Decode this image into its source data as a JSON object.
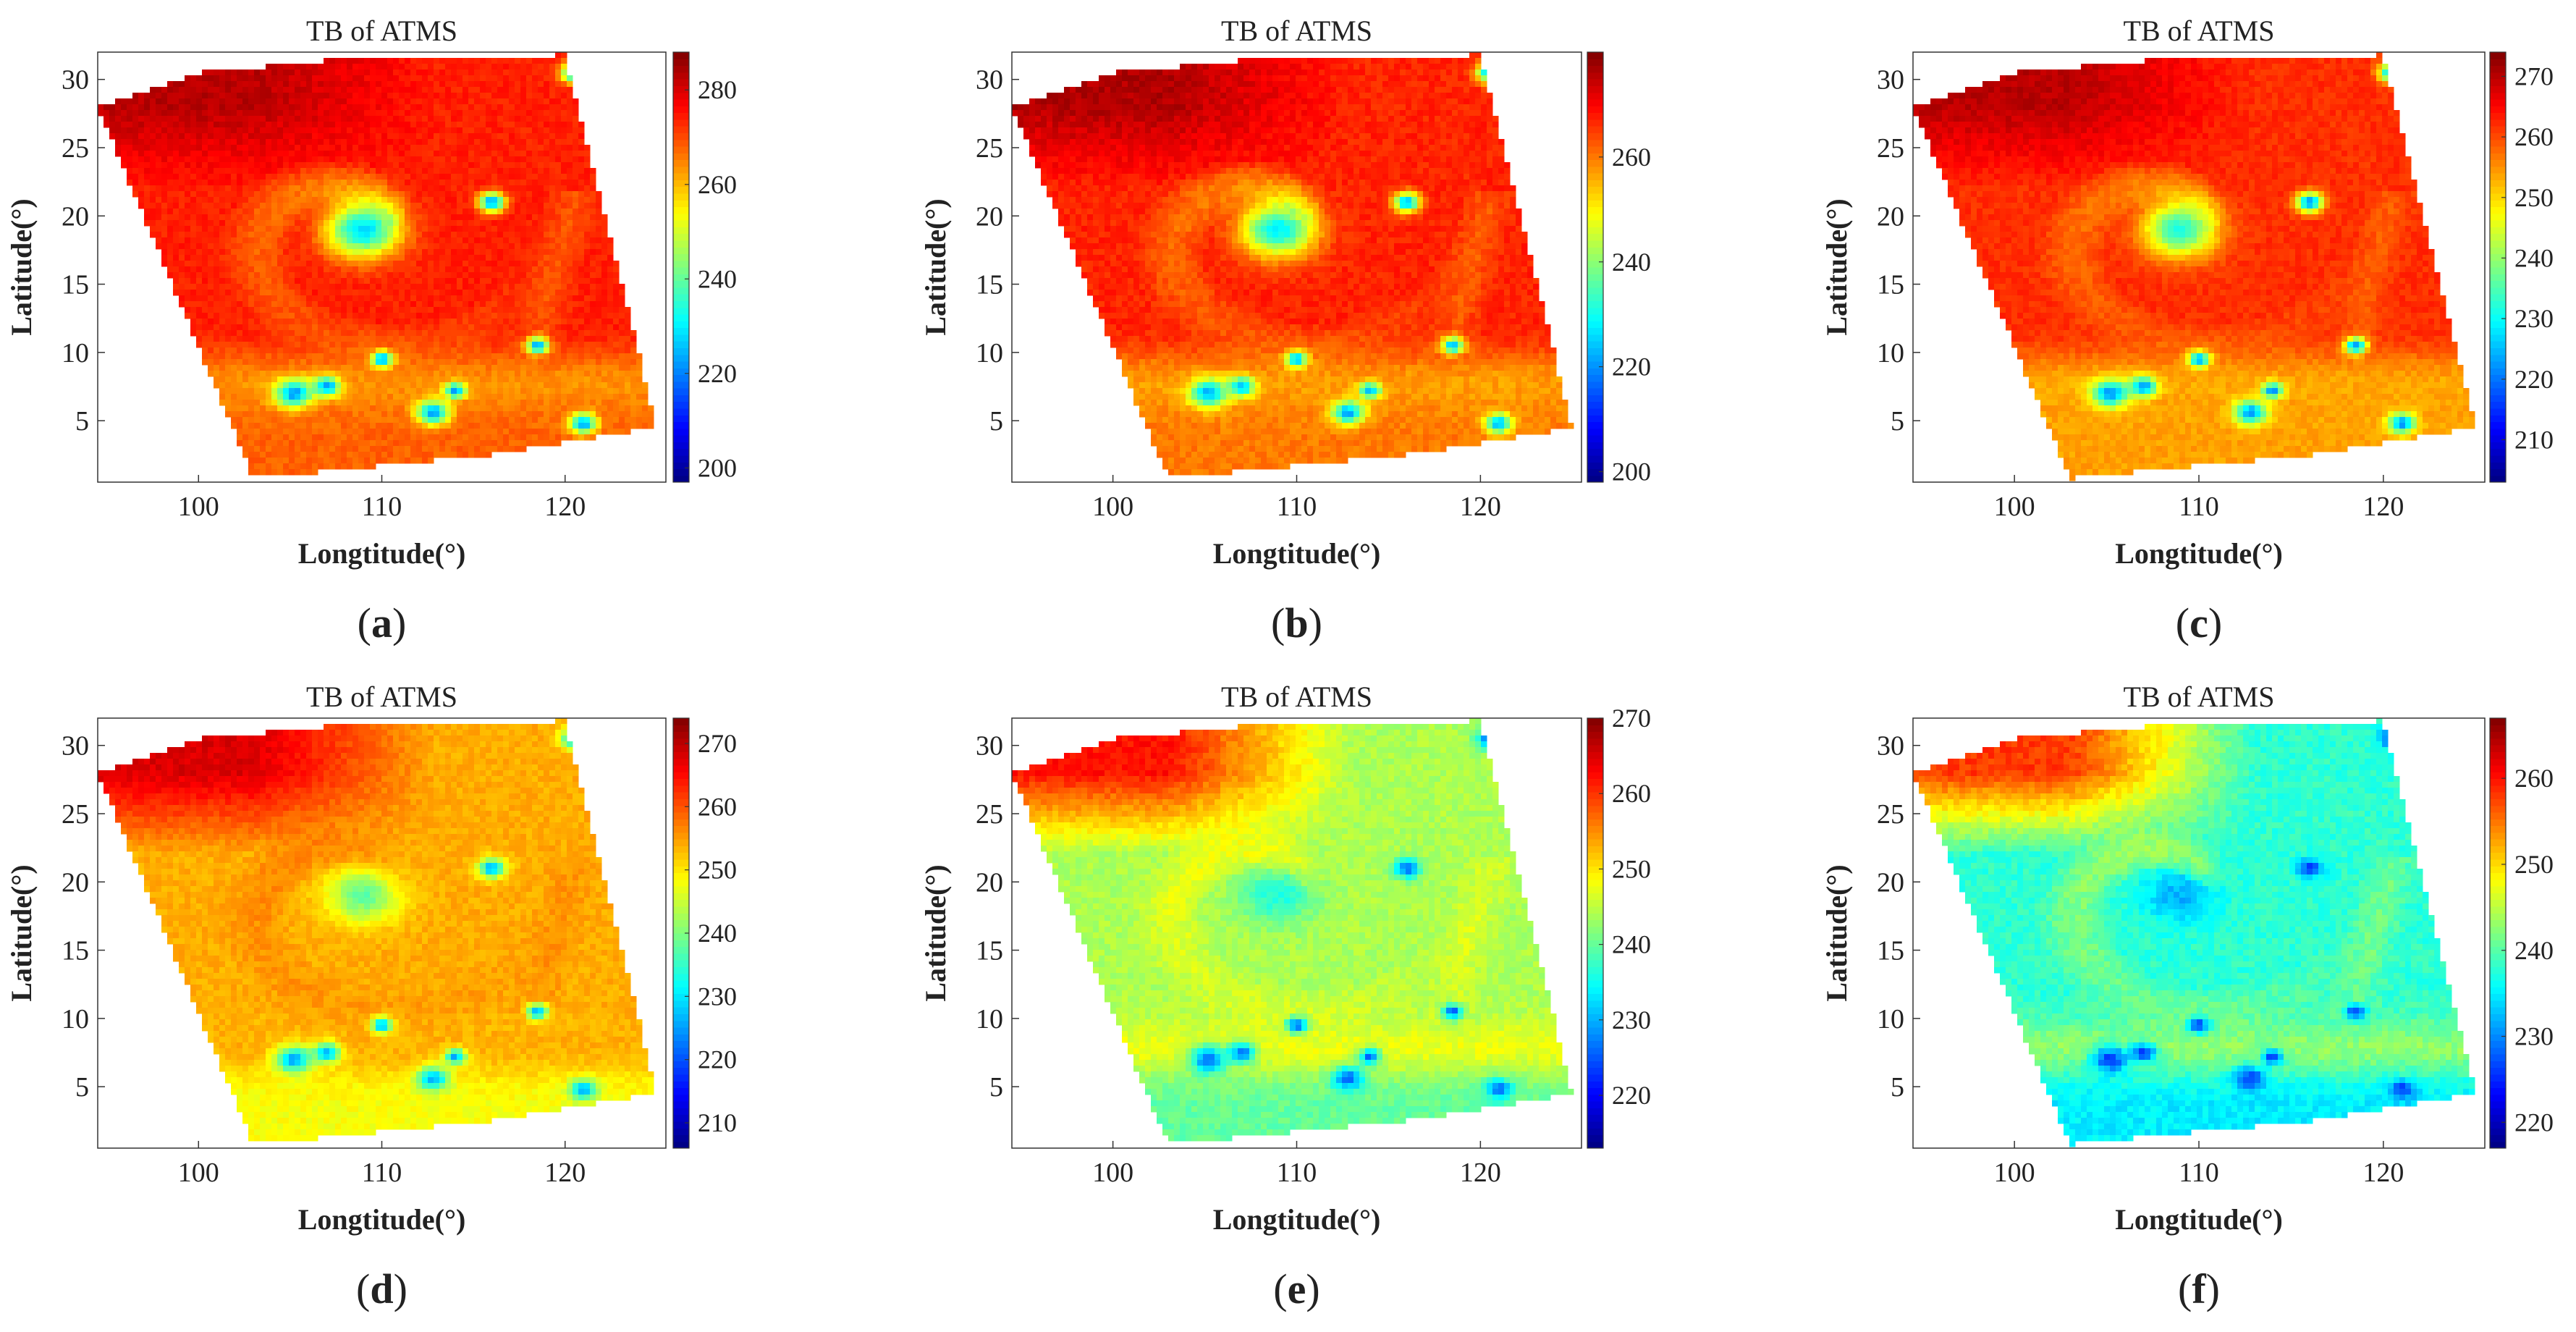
{
  "colors": {
    "jet": [
      "#00007f",
      "#0000ff",
      "#007fff",
      "#00ffff",
      "#7fff7f",
      "#ffff00",
      "#ff7f00",
      "#ff0000",
      "#7f0000"
    ],
    "axis": "#333333",
    "text": "#222222"
  },
  "chart_data": [
    {
      "type": "heatmap",
      "panel": "a",
      "caption": "a",
      "title": "TB of ATMS",
      "xlabel": "Longtitude(°)",
      "ylabel": "Latitude(°)",
      "xlim": [
        94.5,
        125.5
      ],
      "ylim": [
        0.5,
        32
      ],
      "xticks": [
        100,
        110,
        120
      ],
      "yticks": [
        5,
        10,
        15,
        20,
        25,
        30
      ],
      "colorbar": {
        "range": [
          197,
          288
        ],
        "ticks": [
          200,
          220,
          240,
          260,
          280
        ]
      },
      "field_tb": {
        "background": 274,
        "north": 283,
        "south": 268,
        "spiral": 262,
        "band": 258,
        "eye": 228,
        "spot": 222,
        "speckle": 2
      }
    },
    {
      "type": "heatmap",
      "panel": "b",
      "caption": "b",
      "title": "TB of ATMS",
      "xlabel": "Longtitude(°)",
      "ylabel": "Latitude(°)",
      "xlim": [
        94.5,
        125.5
      ],
      "ylim": [
        0.5,
        32
      ],
      "xticks": [
        100,
        110,
        120
      ],
      "yticks": [
        5,
        10,
        15,
        20,
        25,
        30
      ],
      "colorbar": {
        "range": [
          198,
          280
        ],
        "ticks": [
          200,
          220,
          240,
          260
        ]
      },
      "field_tb": {
        "background": 267,
        "north": 276,
        "south": 260,
        "spiral": 256,
        "band": 252,
        "eye": 228,
        "spot": 222,
        "speckle": 2
      }
    },
    {
      "type": "heatmap",
      "panel": "c",
      "caption": "c",
      "title": "TB of ATMS",
      "xlabel": "Longtitude(°)",
      "ylabel": "Latitude(°)",
      "xlim": [
        94.5,
        125.5
      ],
      "ylim": [
        0.5,
        32
      ],
      "xticks": [
        100,
        110,
        120
      ],
      "yticks": [
        5,
        10,
        15,
        20,
        25,
        30
      ],
      "colorbar": {
        "range": [
          203,
          274
        ],
        "ticks": [
          210,
          220,
          230,
          240,
          250,
          260,
          270
        ]
      },
      "field_tb": {
        "background": 262,
        "north": 270,
        "south": 254,
        "spiral": 254,
        "band": 250,
        "eye": 232,
        "spot": 222,
        "speckle": 1.5
      }
    },
    {
      "type": "heatmap",
      "panel": "d",
      "caption": "d",
      "title": "TB of ATMS",
      "xlabel": "Longtitude(°)",
      "ylabel": "Latitude(°)",
      "xlim": [
        94.5,
        125.5
      ],
      "ylim": [
        0.5,
        32
      ],
      "xticks": [
        100,
        110,
        120
      ],
      "yticks": [
        5,
        10,
        15,
        20,
        25,
        30
      ],
      "colorbar": {
        "range": [
          206,
          274
        ],
        "ticks": [
          210,
          220,
          230,
          240,
          250,
          260,
          270
        ]
      },
      "field_tb": {
        "background": 254,
        "north": 268,
        "south": 248,
        "spiral": 258,
        "band": 256,
        "eye": 238,
        "spot": 226,
        "speckle": 1.5
      }
    },
    {
      "type": "heatmap",
      "panel": "e",
      "caption": "e",
      "title": "TB of ATMS",
      "xlabel": "Longtitude(°)",
      "ylabel": "Latitude(°)",
      "xlim": [
        94.5,
        125.5
      ],
      "ylim": [
        0.5,
        32
      ],
      "xticks": [
        100,
        110,
        120
      ],
      "yticks": [
        5,
        10,
        15,
        20,
        25,
        30
      ],
      "colorbar": {
        "range": [
          213,
          270
        ],
        "ticks": [
          220,
          230,
          240,
          250,
          260,
          270
        ]
      },
      "field_tb": {
        "background": 244,
        "north": 262,
        "south": 240,
        "spiral": 250,
        "band": 252,
        "eye": 236,
        "spot": 226,
        "speckle": 1.5
      }
    },
    {
      "type": "heatmap",
      "panel": "f",
      "caption": "f",
      "title": "TB of ATMS",
      "xlabel": "Longtitude(°)",
      "ylabel": "Latitude(°)",
      "xlim": [
        94.5,
        125.5
      ],
      "ylim": [
        0.5,
        32
      ],
      "xticks": [
        100,
        110,
        120
      ],
      "yticks": [
        5,
        10,
        15,
        20,
        25,
        30
      ],
      "colorbar": {
        "range": [
          217,
          267
        ],
        "ticks": [
          220,
          230,
          240,
          250,
          260
        ]
      },
      "field_tb": {
        "background": 238,
        "north": 258,
        "south": 235,
        "spiral": 246,
        "band": 248,
        "eye": 232,
        "spot": 226,
        "speckle": 1.5
      }
    }
  ]
}
